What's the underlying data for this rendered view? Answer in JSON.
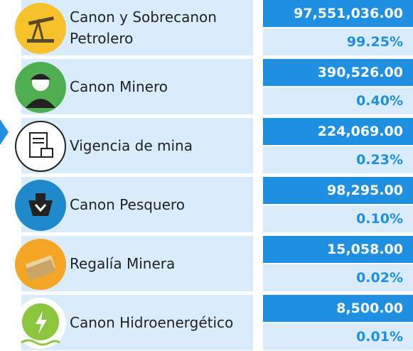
{
  "rows": [
    {
      "label": "Canon y Sobrecanon Petrolero",
      "amount": "97,551,036.00",
      "percent": "99.25%"
    },
    {
      "label": "Canon Minero",
      "amount": "390,526.00",
      "percent": "0.40%"
    },
    {
      "label": "Vigencia de mina",
      "amount": "224,069.00",
      "percent": "0.23%"
    },
    {
      "label": "Canon Pesquero",
      "amount": "98,295.00",
      "percent": "0.10%"
    },
    {
      "label": "Regalía Minera",
      "amount": "15,058.00",
      "percent": "0.02%"
    },
    {
      "label": "Canon Hidroenergético",
      "amount": "8,500.00",
      "percent": "0.01%"
    }
  ]
}
